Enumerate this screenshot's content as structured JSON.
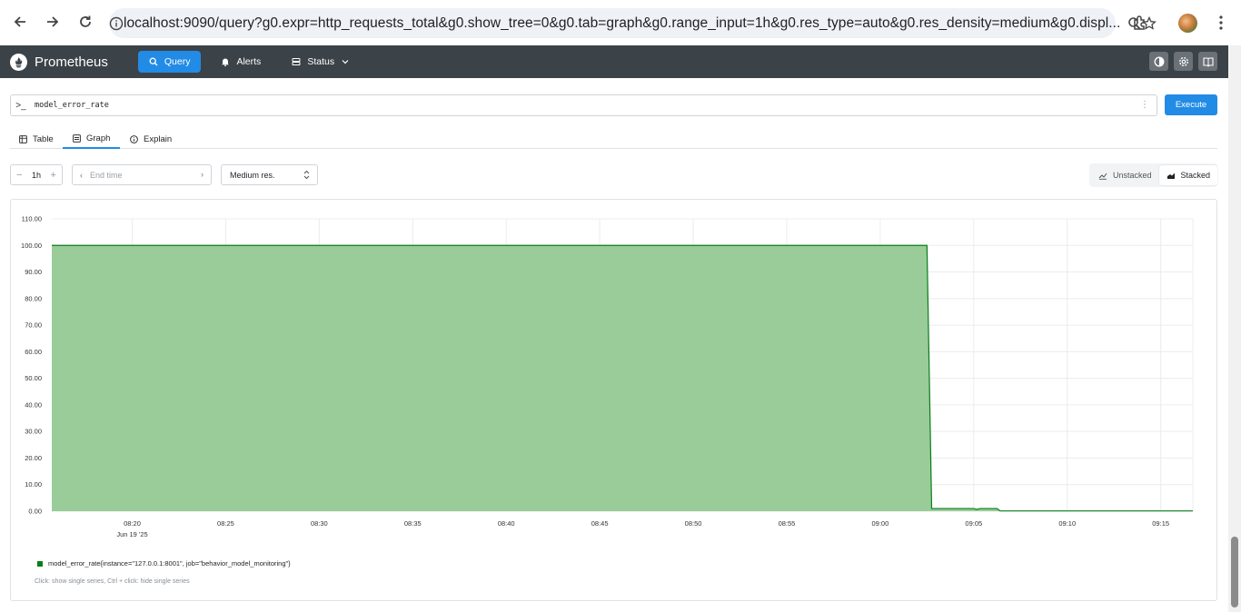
{
  "browser": {
    "url_host": "localhost",
    "url_rest": ":9090/query?g0.expr=http_requests_total&g0.show_tree=0&g0.tab=graph&g0.range_input=1h&g0.res_type=auto&g0.res_density=medium&g0.displ..."
  },
  "navbar": {
    "brand": "Prometheus",
    "items": [
      {
        "label": "Query",
        "icon": "search-icon"
      },
      {
        "label": "Alerts",
        "icon": "bell-icon"
      },
      {
        "label": "Status",
        "icon": "server-icon"
      }
    ],
    "right_icons": [
      "theme-toggle-icon",
      "settings-icon",
      "docs-icon"
    ],
    "accent": "#228be6",
    "bg": "#3b4248"
  },
  "query": {
    "prompt": ">_",
    "expression": "model_error_rate",
    "execute_label": "Execute"
  },
  "tabs": [
    {
      "label": "Table",
      "icon": "table-icon"
    },
    {
      "label": "Graph",
      "icon": "graph-icon",
      "active": true
    },
    {
      "label": "Explain",
      "icon": "info-icon"
    }
  ],
  "controls": {
    "range": "1h",
    "range_minus": "−",
    "range_plus": "+",
    "end_time_placeholder": "End time",
    "resolution": "Medium res.",
    "stack_options": [
      "Unstacked",
      "Stacked"
    ],
    "stack_selected": "Stacked"
  },
  "chart_data": {
    "type": "area",
    "stacked": true,
    "ylim": [
      0,
      110
    ],
    "yticks": [
      "0.00",
      "10.00",
      "20.00",
      "30.00",
      "40.00",
      "50.00",
      "60.00",
      "70.00",
      "80.00",
      "90.00",
      "100.00",
      "110.00"
    ],
    "xticks": [
      "08:20",
      "08:25",
      "08:30",
      "08:35",
      "08:40",
      "08:45",
      "08:50",
      "08:55",
      "09:00",
      "09:05",
      "09:10",
      "09:15"
    ],
    "x_date_label": "Jun 19 '25",
    "xlim": [
      "08:15:42",
      "09:16:43"
    ],
    "grid": true,
    "legend_position": "bottom-left",
    "series": [
      {
        "name": "model_error_rate{instance=\"127.0.0.1:8001\", job=\"behavior_model_monitoring\"}",
        "color": "#0a7d1a",
        "fill": "#99cc99",
        "points": [
          [
            "08:15:42",
            100
          ],
          [
            "09:02:30",
            100
          ],
          [
            "09:02:45",
            1.0
          ],
          [
            "09:05:00",
            1.0
          ],
          [
            "09:05:10",
            0.7
          ],
          [
            "09:05:20",
            1.0
          ],
          [
            "09:06:15",
            1.0
          ],
          [
            "09:06:25",
            0.1
          ],
          [
            "09:16:43",
            0.1
          ]
        ]
      }
    ]
  },
  "legend_hint": "Click: show single series, Ctrl + click: hide single series"
}
